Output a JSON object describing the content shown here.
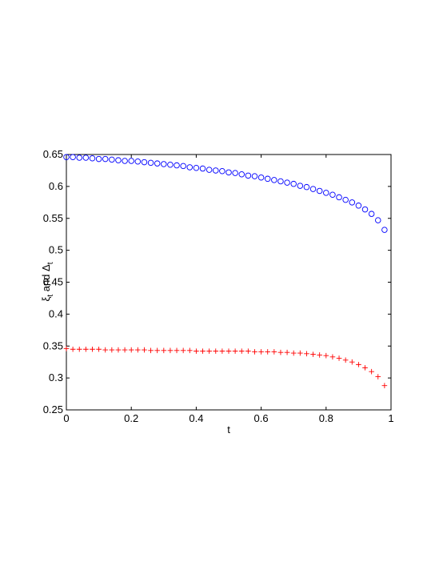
{
  "chart_data": {
    "type": "scatter",
    "xlabel": "t",
    "ylabel_parts": [
      "ξ",
      "t",
      " and ",
      "Δ",
      "t"
    ],
    "xlim": [
      0,
      1
    ],
    "ylim": [
      0.25,
      0.65
    ],
    "xticks": [
      0,
      0.2,
      0.4,
      0.6,
      0.8,
      1
    ],
    "xtick_labels": [
      "0",
      "0.2",
      "0.4",
      "0.6",
      "0.8",
      "1"
    ],
    "yticks": [
      0.25,
      0.3,
      0.35,
      0.4,
      0.45,
      0.5,
      0.55,
      0.6,
      0.65
    ],
    "ytick_labels": [
      "0.25",
      "0.3",
      "0.35",
      "0.4",
      "0.45",
      "0.5",
      "0.55",
      "0.6",
      "0.65"
    ],
    "grid": false,
    "series": [
      {
        "marker": "circle",
        "color": "#0000ff",
        "x": [
          0,
          0.02,
          0.04,
          0.06,
          0.08,
          0.1,
          0.12,
          0.14,
          0.16,
          0.18,
          0.2,
          0.22,
          0.24,
          0.26,
          0.28,
          0.3,
          0.32,
          0.34,
          0.36,
          0.38,
          0.4,
          0.42,
          0.44,
          0.46,
          0.48,
          0.5,
          0.52,
          0.54,
          0.56,
          0.58,
          0.6,
          0.62,
          0.64,
          0.66,
          0.68,
          0.7,
          0.72,
          0.74,
          0.76,
          0.78,
          0.8,
          0.82,
          0.84,
          0.86,
          0.88,
          0.9,
          0.92,
          0.94,
          0.96,
          0.98
        ],
        "y": [
          0.646,
          0.646,
          0.645,
          0.645,
          0.644,
          0.643,
          0.643,
          0.642,
          0.641,
          0.64,
          0.64,
          0.639,
          0.638,
          0.637,
          0.636,
          0.635,
          0.634,
          0.633,
          0.632,
          0.63,
          0.629,
          0.628,
          0.626,
          0.625,
          0.624,
          0.622,
          0.621,
          0.619,
          0.617,
          0.616,
          0.614,
          0.612,
          0.61,
          0.608,
          0.606,
          0.604,
          0.601,
          0.599,
          0.596,
          0.593,
          0.59,
          0.587,
          0.583,
          0.579,
          0.575,
          0.57,
          0.564,
          0.557,
          0.547,
          0.532
        ]
      },
      {
        "marker": "plus",
        "color": "#ff0000",
        "x": [
          0,
          0.02,
          0.04,
          0.06,
          0.08,
          0.1,
          0.12,
          0.14,
          0.16,
          0.18,
          0.2,
          0.22,
          0.24,
          0.26,
          0.28,
          0.3,
          0.32,
          0.34,
          0.36,
          0.38,
          0.4,
          0.42,
          0.44,
          0.46,
          0.48,
          0.5,
          0.52,
          0.54,
          0.56,
          0.58,
          0.6,
          0.62,
          0.64,
          0.66,
          0.68,
          0.7,
          0.72,
          0.74,
          0.76,
          0.78,
          0.8,
          0.82,
          0.84,
          0.86,
          0.88,
          0.9,
          0.92,
          0.94,
          0.96,
          0.98
        ],
        "y": [
          0.346,
          0.345,
          0.345,
          0.345,
          0.345,
          0.345,
          0.344,
          0.344,
          0.344,
          0.344,
          0.344,
          0.344,
          0.344,
          0.343,
          0.343,
          0.343,
          0.343,
          0.343,
          0.343,
          0.343,
          0.342,
          0.342,
          0.342,
          0.342,
          0.342,
          0.342,
          0.342,
          0.342,
          0.342,
          0.341,
          0.341,
          0.341,
          0.341,
          0.34,
          0.34,
          0.339,
          0.339,
          0.338,
          0.337,
          0.336,
          0.335,
          0.333,
          0.331,
          0.328,
          0.325,
          0.321,
          0.316,
          0.31,
          0.302,
          0.288
        ]
      }
    ]
  }
}
